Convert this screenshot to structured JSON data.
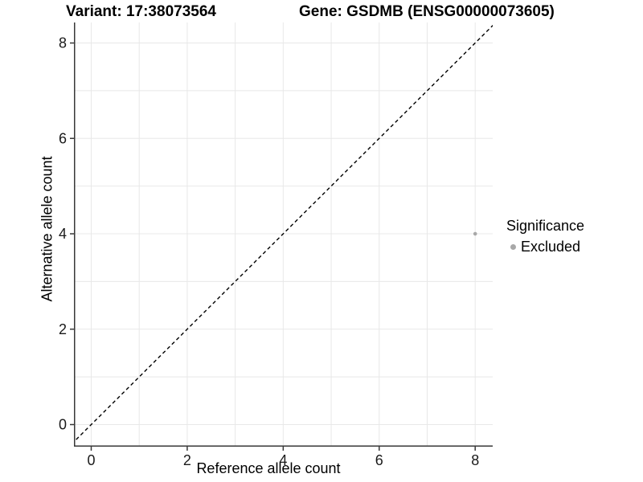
{
  "titles": {
    "left": "Variant: 17:38073564",
    "right": "Gene: GSDMB (ENSG00000073605)"
  },
  "legend": {
    "title": "Significance",
    "items": [
      {
        "label": "Excluded",
        "color": "#a8a8a8"
      }
    ]
  },
  "chart_data": {
    "type": "scatter",
    "xlabel": "Reference allele count",
    "ylabel": "Alternative allele count",
    "xlim": [
      -0.36,
      8.365
    ],
    "ylim": [
      -0.463,
      8.43
    ],
    "x_ticks": [
      0,
      2,
      4,
      6,
      8
    ],
    "y_ticks": [
      0,
      2,
      4,
      6,
      8
    ],
    "grid_every": 1,
    "grid_on": true,
    "legend_position": "right",
    "series": [
      {
        "name": "Excluded",
        "color": "#a8a8a8",
        "points": [
          {
            "x": 8,
            "y": 4
          }
        ]
      }
    ],
    "reference_line": {
      "type": "identity",
      "slope": 1,
      "intercept": 0,
      "style": "dashed",
      "color": "#000000"
    }
  },
  "style": {
    "grid_color": "#e8e8e8",
    "axis_color": "#383838",
    "tick_label_color": "#1a1a1a",
    "background": "#ffffff"
  }
}
